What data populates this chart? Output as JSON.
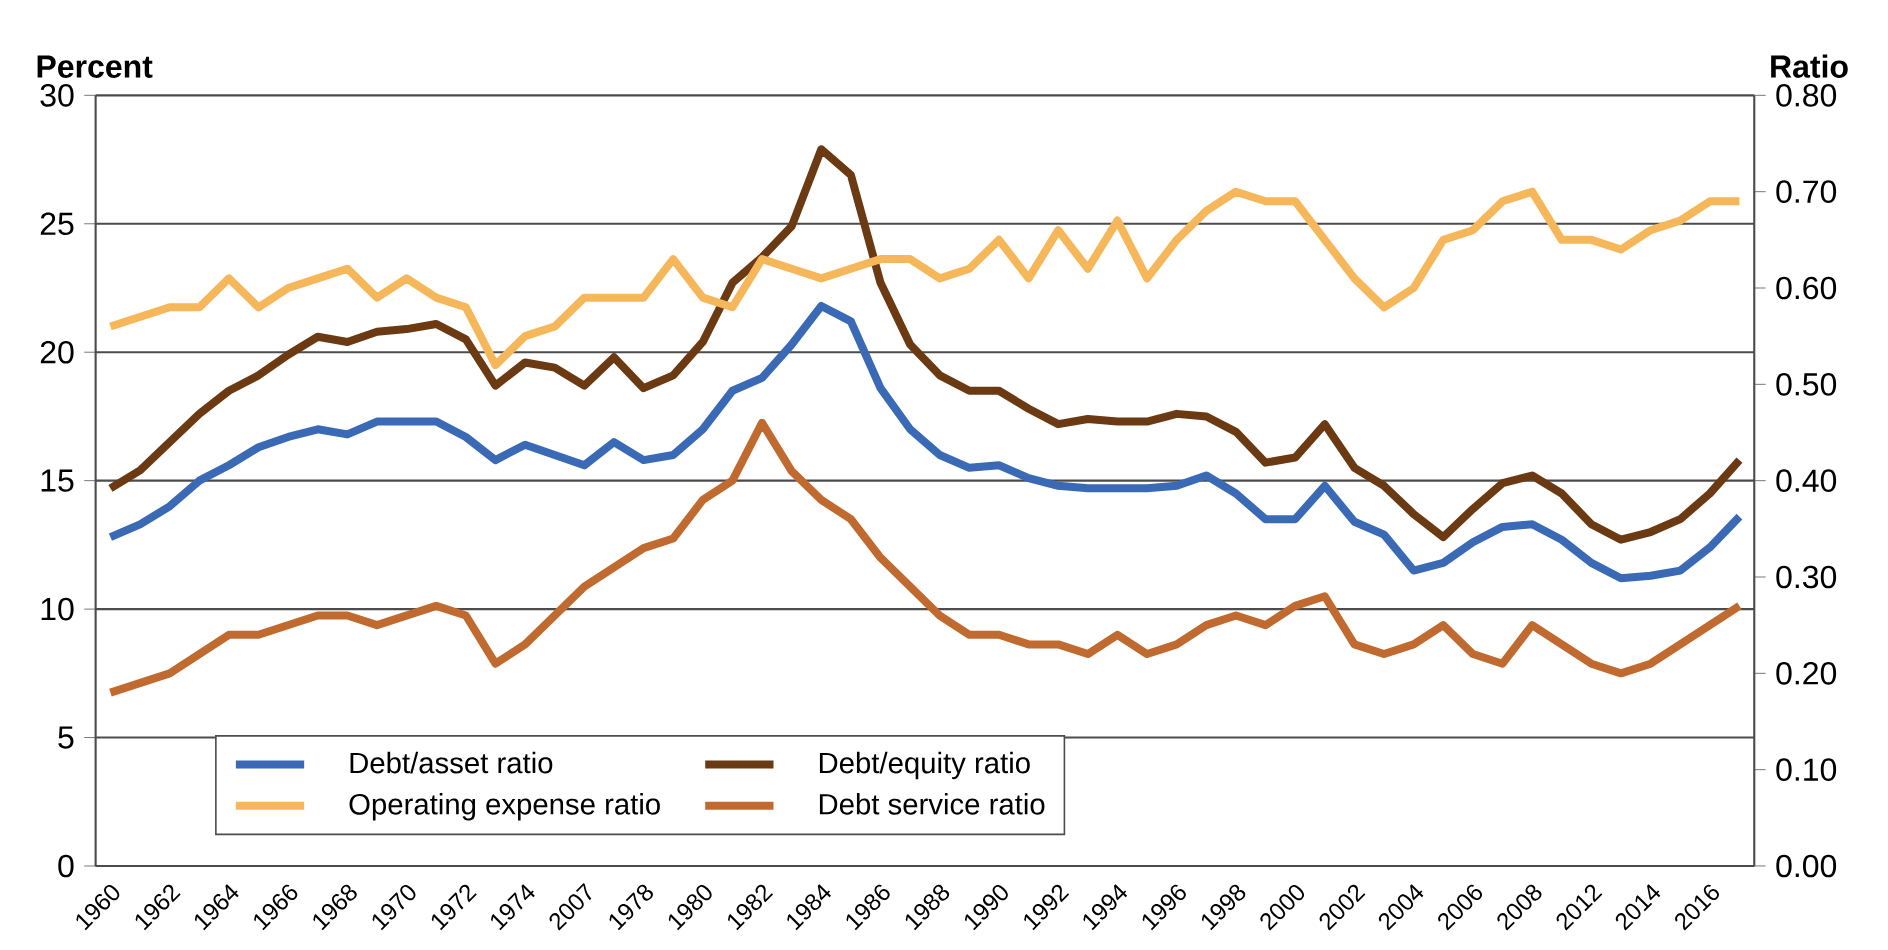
{
  "chart_data": {
    "type": "line",
    "ylabel": "Percent",
    "y2label": "Ratio",
    "categories": [
      "1960",
      null,
      "1962",
      null,
      "1964",
      null,
      "1966",
      null,
      "1968",
      null,
      "1970",
      null,
      "1972",
      null,
      "1974",
      null,
      "2007",
      null,
      "1978",
      null,
      "1980",
      null,
      "1982",
      null,
      "1984",
      null,
      "1986",
      null,
      "1988",
      null,
      "1990",
      null,
      "1992",
      null,
      "1994",
      null,
      "1996",
      null,
      "1998",
      null,
      "2000",
      null,
      "2002",
      null,
      "2004",
      null,
      "2006",
      null,
      "2008",
      null,
      "2012",
      null,
      "2014",
      null,
      "2016",
      null
    ],
    "series": [
      {
        "name": "Debt/asset ratio",
        "color": "#3a6ab5",
        "values": [
          12.8,
          13.3,
          14.0,
          15.0,
          15.6,
          16.3,
          16.7,
          17.0,
          16.8,
          17.3,
          17.3,
          17.3,
          16.7,
          15.8,
          16.4,
          16.0,
          15.6,
          16.5,
          15.8,
          16.0,
          17.0,
          18.5,
          19.0,
          20.3,
          21.8,
          21.2,
          18.6,
          17.0,
          16.0,
          15.5,
          15.6,
          15.1,
          14.8,
          14.7,
          14.7,
          14.7,
          14.8,
          15.2,
          14.5,
          13.5,
          13.5,
          14.8,
          13.4,
          12.9,
          11.5,
          11.8,
          12.6,
          13.2,
          13.3,
          12.7,
          11.8,
          11.2,
          11.3,
          11.5,
          12.4,
          13.6
        ]
      },
      {
        "name": "Debt/equity ratio",
        "color": "#6b3a12",
        "values": [
          14.7,
          15.4,
          16.5,
          17.6,
          18.5,
          19.1,
          19.9,
          20.6,
          20.4,
          20.8,
          20.9,
          21.1,
          20.5,
          18.7,
          19.6,
          19.4,
          18.7,
          19.8,
          18.6,
          19.1,
          20.4,
          22.7,
          23.7,
          24.9,
          27.9,
          26.9,
          22.7,
          20.3,
          19.1,
          18.5,
          18.5,
          17.8,
          17.2,
          17.4,
          17.3,
          17.3,
          17.6,
          17.5,
          16.9,
          15.7,
          15.9,
          17.2,
          15.5,
          14.8,
          13.7,
          12.8,
          13.9,
          14.9,
          15.2,
          14.5,
          13.3,
          12.7,
          13.0,
          13.5,
          14.5,
          15.8
        ]
      },
      {
        "name": "Operating expense ratio",
        "color": "#f5b75a",
        "axis": "y2",
        "values": [
          0.56,
          0.57,
          0.58,
          0.58,
          0.61,
          0.58,
          0.6,
          0.61,
          0.62,
          0.59,
          0.61,
          0.59,
          0.58,
          0.52,
          0.55,
          0.56,
          0.59,
          0.59,
          0.59,
          0.63,
          0.59,
          0.58,
          0.63,
          0.62,
          0.61,
          0.62,
          0.63,
          0.63,
          0.61,
          0.62,
          0.65,
          0.61,
          0.66,
          0.62,
          0.67,
          0.61,
          0.65,
          0.68,
          0.7,
          0.69,
          0.69,
          0.65,
          0.61,
          0.58,
          0.6,
          0.65,
          0.66,
          0.69,
          0.7,
          0.65,
          0.65,
          0.64,
          0.66,
          0.67,
          0.69,
          0.69
        ]
      },
      {
        "name": "Debt service ratio",
        "color": "#c06a30",
        "axis": "y2",
        "values": [
          0.18,
          0.19,
          0.2,
          0.22,
          0.24,
          0.24,
          0.25,
          0.26,
          0.26,
          0.25,
          0.26,
          0.27,
          0.26,
          0.21,
          0.23,
          0.26,
          0.29,
          0.31,
          0.33,
          0.34,
          0.38,
          0.4,
          0.46,
          0.41,
          0.38,
          0.36,
          0.32,
          0.29,
          0.26,
          0.24,
          0.24,
          0.23,
          0.23,
          0.22,
          0.24,
          0.22,
          0.23,
          0.25,
          0.26,
          0.25,
          0.27,
          0.28,
          0.23,
          0.22,
          0.23,
          0.25,
          0.22,
          0.21,
          0.25,
          0.23,
          0.21,
          0.2,
          0.21,
          0.23,
          0.25,
          0.27
        ]
      }
    ],
    "ylim": [
      0,
      30
    ],
    "yticks": [
      0,
      5,
      10,
      15,
      20,
      25,
      30
    ],
    "y2lim": [
      0,
      0.8
    ],
    "y2ticks": [
      {
        "value": 0,
        "label": "0.00"
      },
      {
        "value": 0.1,
        "label": "0.10"
      },
      {
        "value": 0.2,
        "label": "0.20"
      },
      {
        "value": 0.3,
        "label": "0.30"
      },
      {
        "value": 0.4,
        "label": "0.40"
      },
      {
        "value": 0.5,
        "label": "0.50"
      },
      {
        "value": 0.6,
        "label": "0.60"
      },
      {
        "value": 0.7,
        "label": "0.70"
      },
      {
        "value": 0.8,
        "label": "0.80"
      }
    ],
    "grid": "y",
    "legend": "bottom left",
    "line_style": "solid",
    "marker": "none"
  }
}
